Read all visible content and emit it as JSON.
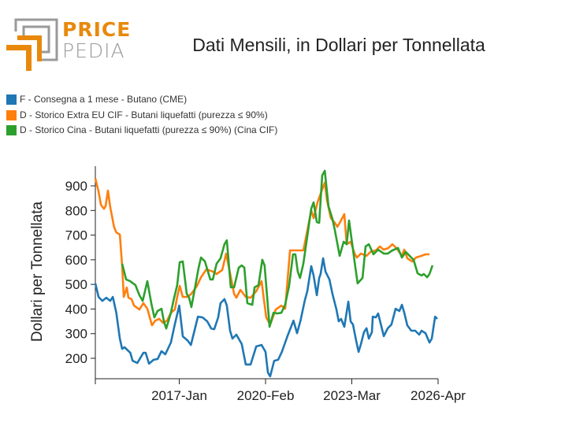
{
  "logo": {
    "line1": "PRICE",
    "line2": "PEDIA"
  },
  "chart_data": {
    "type": "line",
    "title": "Dati Mensili, in Dollari per Tonnellata",
    "xlabel": "",
    "ylabel": "Dollari per Tonnellata",
    "x_unit": "months since 2014-Jan",
    "xlim": [
      0,
      147
    ],
    "ylim": [
      117,
      980
    ],
    "yticks": [
      200,
      300,
      400,
      500,
      600,
      700,
      800,
      900
    ],
    "xticks": [
      {
        "m": 0,
        "label": ""
      },
      {
        "m": 36,
        "label": "2017-Jan"
      },
      {
        "m": 73,
        "label": "2020-Feb"
      },
      {
        "m": 110,
        "label": "2023-Mar"
      },
      {
        "m": 147,
        "label": "2026-Apr"
      }
    ],
    "grid": false,
    "legend_position": "top-left",
    "series": [
      {
        "name": "F - Consegna a 1 mese - Butano (CME)",
        "color": "#1f77b4",
        "points": [
          [
            0,
            504
          ],
          [
            1.4,
            449
          ],
          [
            3,
            433
          ],
          [
            4.7,
            446
          ],
          [
            6.4,
            433
          ],
          [
            7.5,
            449
          ],
          [
            9,
            385
          ],
          [
            10.5,
            280
          ],
          [
            11.5,
            238
          ],
          [
            12.5,
            245
          ],
          [
            15,
            222
          ],
          [
            16,
            190
          ],
          [
            18,
            181
          ],
          [
            20.6,
            222
          ],
          [
            21.6,
            222
          ],
          [
            23,
            178
          ],
          [
            25,
            194
          ],
          [
            26.7,
            197
          ],
          [
            28.4,
            229
          ],
          [
            30,
            216
          ],
          [
            32.4,
            264
          ],
          [
            34,
            334
          ],
          [
            36,
            414
          ],
          [
            37.5,
            289
          ],
          [
            39.5,
            273
          ],
          [
            41,
            254
          ],
          [
            42.5,
            312
          ],
          [
            44,
            369
          ],
          [
            46,
            366
          ],
          [
            48,
            350
          ],
          [
            49.7,
            321
          ],
          [
            51,
            318
          ],
          [
            52.7,
            366
          ],
          [
            53.7,
            424
          ],
          [
            55.4,
            440
          ],
          [
            56.4,
            414
          ],
          [
            57.8,
            312
          ],
          [
            58.8,
            280
          ],
          [
            60.5,
            296
          ],
          [
            62.8,
            258
          ],
          [
            64.5,
            175
          ],
          [
            66.6,
            175
          ],
          [
            69,
            248
          ],
          [
            71.3,
            254
          ],
          [
            73,
            226
          ],
          [
            74,
            142
          ],
          [
            75,
            127
          ],
          [
            76.7,
            190
          ],
          [
            78.4,
            194
          ],
          [
            80,
            226
          ],
          [
            82.4,
            290
          ],
          [
            85,
            353
          ],
          [
            86.5,
            302
          ],
          [
            88,
            353
          ],
          [
            89.8,
            433
          ],
          [
            90.9,
            472
          ],
          [
            92.6,
            574
          ],
          [
            93.6,
            536
          ],
          [
            95,
            456
          ],
          [
            96,
            526
          ],
          [
            96.6,
            542
          ],
          [
            97.7,
            606
          ],
          [
            98.7,
            552
          ],
          [
            100.4,
            520
          ],
          [
            101.7,
            462
          ],
          [
            103.4,
            398
          ],
          [
            104.4,
            350
          ],
          [
            105.4,
            360
          ],
          [
            106.8,
            328
          ],
          [
            108.5,
            430
          ],
          [
            109.5,
            350
          ],
          [
            110.5,
            337
          ],
          [
            111.9,
            270
          ],
          [
            112.9,
            226
          ],
          [
            113.9,
            258
          ],
          [
            115.2,
            306
          ],
          [
            116.3,
            322
          ],
          [
            117.3,
            280
          ],
          [
            118.6,
            306
          ],
          [
            119,
            369
          ],
          [
            120.3,
            366
          ],
          [
            121.3,
            382
          ],
          [
            122.3,
            344
          ],
          [
            123.7,
            290
          ],
          [
            125.4,
            322
          ],
          [
            127,
            337
          ],
          [
            128.8,
            401
          ],
          [
            130.4,
            392
          ],
          [
            131.5,
            417
          ],
          [
            132.5,
            385
          ],
          [
            133.8,
            334
          ],
          [
            135.5,
            312
          ],
          [
            137.2,
            312
          ],
          [
            138.9,
            296
          ],
          [
            139.9,
            312
          ],
          [
            141.6,
            302
          ],
          [
            143.3,
            264
          ],
          [
            144.3,
            280
          ],
          [
            145.7,
            369
          ],
          [
            146.7,
            360
          ]
        ]
      },
      {
        "name": "D - Storico Extra EU CIF - Butani liquefatti (purezza ≤ 90%)",
        "color": "#ff7f0e",
        "points": [
          [
            0,
            930
          ],
          [
            1.3,
            881
          ],
          [
            2.4,
            823
          ],
          [
            3.7,
            807
          ],
          [
            4.4,
            817
          ],
          [
            5.4,
            881
          ],
          [
            6.4,
            814
          ],
          [
            8,
            734
          ],
          [
            9,
            711
          ],
          [
            10.5,
            702
          ],
          [
            11.5,
            577
          ],
          [
            12.2,
            449
          ],
          [
            13.5,
            487
          ],
          [
            14.2,
            446
          ],
          [
            15.5,
            440
          ],
          [
            16.6,
            414
          ],
          [
            18.9,
            398
          ],
          [
            20.6,
            424
          ],
          [
            22.3,
            401
          ],
          [
            24.3,
            334
          ],
          [
            25.7,
            353
          ],
          [
            27.4,
            360
          ],
          [
            29,
            344
          ],
          [
            30.8,
            353
          ],
          [
            32.4,
            385
          ],
          [
            34.1,
            398
          ],
          [
            35.1,
            449
          ],
          [
            36.2,
            494
          ],
          [
            37.5,
            449
          ],
          [
            39.5,
            449
          ],
          [
            41.2,
            462
          ],
          [
            43.6,
            494
          ],
          [
            45.3,
            529
          ],
          [
            47.6,
            561
          ],
          [
            50.4,
            552
          ],
          [
            52,
            542
          ],
          [
            54.4,
            558
          ],
          [
            56.1,
            625
          ],
          [
            57.8,
            545
          ],
          [
            59.5,
            462
          ],
          [
            60.5,
            446
          ],
          [
            62.2,
            478
          ],
          [
            64.5,
            449
          ],
          [
            66.6,
            446
          ],
          [
            69,
            472
          ],
          [
            71.3,
            513
          ],
          [
            72.3,
            440
          ],
          [
            73.3,
            366
          ],
          [
            75,
            337
          ],
          [
            77.4,
            398
          ],
          [
            79.8,
            414
          ],
          [
            81.4,
            401
          ],
          [
            83.5,
            638
          ],
          [
            85.2,
            638
          ],
          [
            87.5,
            638
          ],
          [
            89.2,
            638
          ],
          [
            90.9,
            718
          ],
          [
            92.6,
            801
          ],
          [
            93.6,
            769
          ],
          [
            95.3,
            833
          ],
          [
            97,
            878
          ],
          [
            98.4,
            913
          ],
          [
            99.4,
            839
          ],
          [
            101,
            769
          ],
          [
            102.7,
            750
          ],
          [
            103.8,
            734
          ],
          [
            105,
            753
          ],
          [
            106.8,
            785
          ],
          [
            107.8,
            663
          ],
          [
            109.5,
            673
          ],
          [
            111.2,
            625
          ],
          [
            112.2,
            609
          ],
          [
            113.9,
            625
          ],
          [
            116.3,
            616
          ],
          [
            118,
            632
          ],
          [
            120.3,
            638
          ],
          [
            122,
            654
          ],
          [
            123.7,
            641
          ],
          [
            125.7,
            648
          ],
          [
            127.4,
            663
          ],
          [
            129.1,
            648
          ],
          [
            131.5,
            616
          ],
          [
            132.5,
            641
          ],
          [
            133.8,
            606
          ],
          [
            135.9,
            593
          ],
          [
            137.5,
            609
          ],
          [
            139.9,
            616
          ],
          [
            141.6,
            622
          ],
          [
            143.3,
            622
          ]
        ]
      },
      {
        "name": "D - Storico Cina - Butani liquefatti (purezza ≤ 90%) (Cina CIF)",
        "color": "#2ca02c",
        "points": [
          [
            11.5,
            584
          ],
          [
            13.2,
            520
          ],
          [
            14.9,
            513
          ],
          [
            17.2,
            497
          ],
          [
            18.9,
            456
          ],
          [
            20.3,
            433
          ],
          [
            22.3,
            513
          ],
          [
            24,
            424
          ],
          [
            25.3,
            366
          ],
          [
            26.7,
            392
          ],
          [
            28.4,
            401
          ],
          [
            29.4,
            350
          ],
          [
            30.4,
            321
          ],
          [
            32.4,
            385
          ],
          [
            33.5,
            433
          ],
          [
            35.1,
            497
          ],
          [
            36.2,
            590
          ],
          [
            37.5,
            593
          ],
          [
            39.2,
            462
          ],
          [
            40.2,
            446
          ],
          [
            41.2,
            408
          ],
          [
            42.9,
            494
          ],
          [
            44.3,
            568
          ],
          [
            45.3,
            609
          ],
          [
            47,
            593
          ],
          [
            49.3,
            520
          ],
          [
            50.4,
            520
          ],
          [
            52,
            584
          ],
          [
            53.7,
            606
          ],
          [
            55.4,
            663
          ],
          [
            56.4,
            679
          ],
          [
            58.1,
            488
          ],
          [
            59.5,
            488
          ],
          [
            61.5,
            568
          ],
          [
            62.8,
            577
          ],
          [
            63.9,
            568
          ],
          [
            65.2,
            424
          ],
          [
            67.3,
            417
          ],
          [
            68.3,
            488
          ],
          [
            70,
            497
          ],
          [
            71.6,
            600
          ],
          [
            72.6,
            577
          ],
          [
            74.7,
            328
          ],
          [
            76.4,
            385
          ],
          [
            78,
            382
          ],
          [
            79.8,
            385
          ],
          [
            81.4,
            417
          ],
          [
            83.1,
            494
          ],
          [
            84.8,
            622
          ],
          [
            85.8,
            622
          ],
          [
            86.8,
            552
          ],
          [
            87.8,
            526
          ],
          [
            89.2,
            584
          ],
          [
            90.9,
            695
          ],
          [
            92.6,
            807
          ],
          [
            93.6,
            833
          ],
          [
            95,
            753
          ],
          [
            96,
            750
          ],
          [
            97.3,
            942
          ],
          [
            98.4,
            961
          ],
          [
            100,
            817
          ],
          [
            101.7,
            766
          ],
          [
            102.7,
            721
          ],
          [
            104.8,
            616
          ],
          [
            106.5,
            673
          ],
          [
            107.8,
            663
          ],
          [
            108.8,
            759
          ],
          [
            110.2,
            663
          ],
          [
            111.2,
            590
          ],
          [
            112.5,
            504
          ],
          [
            114.6,
            526
          ],
          [
            115.9,
            654
          ],
          [
            117.3,
            663
          ],
          [
            119.3,
            622
          ],
          [
            121.3,
            641
          ],
          [
            123.7,
            625
          ],
          [
            125.4,
            625
          ],
          [
            127.4,
            638
          ],
          [
            129.8,
            648
          ],
          [
            131.5,
            609
          ],
          [
            133.1,
            632
          ],
          [
            135.5,
            609
          ],
          [
            136.5,
            600
          ],
          [
            138.2,
            545
          ],
          [
            139.9,
            536
          ],
          [
            140.9,
            542
          ],
          [
            142.3,
            529
          ],
          [
            143.3,
            542
          ],
          [
            144.6,
            577
          ]
        ]
      }
    ]
  }
}
